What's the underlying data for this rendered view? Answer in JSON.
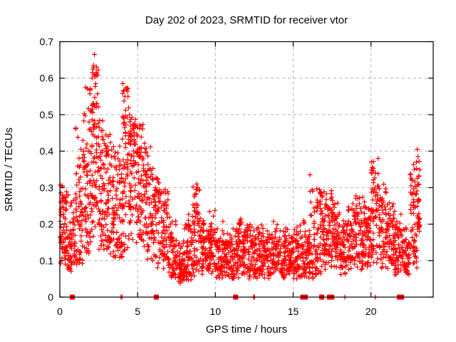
{
  "page": {
    "background": "#ffffff"
  },
  "chart_data": {
    "type": "scatter",
    "title": "Day 202 of 2023, SRMTID for receiver vtor",
    "xlabel": "GPS time / hours",
    "ylabel": "SRMTID / TECUs",
    "xlim": [
      0,
      24
    ],
    "ylim": [
      0,
      0.7
    ],
    "xticks": [
      0,
      5,
      10,
      15,
      20
    ],
    "yticks": [
      0,
      0.1,
      0.2,
      0.3,
      0.4,
      0.5,
      0.6,
      0.7
    ],
    "grid": true,
    "grid_color": "#b0b0b0",
    "marker": "plus",
    "marker_color": "#ff0000",
    "border_color": "#000000",
    "series_note": "dense SRMTID scatter; bins are [x_start, x_end, n_points, y_min, y_q25, y_q75, y_max] read from the plot",
    "bins": [
      [
        0.0,
        0.5,
        70,
        0.08,
        0.14,
        0.25,
        0.31
      ],
      [
        0.5,
        1.0,
        60,
        0.07,
        0.1,
        0.18,
        0.28
      ],
      [
        1.0,
        1.5,
        65,
        0.09,
        0.13,
        0.28,
        0.47
      ],
      [
        1.5,
        2.0,
        75,
        0.12,
        0.18,
        0.42,
        0.6
      ],
      [
        2.0,
        2.5,
        85,
        0.13,
        0.26,
        0.52,
        0.64
      ],
      [
        2.5,
        3.0,
        75,
        0.12,
        0.2,
        0.4,
        0.5
      ],
      [
        3.0,
        3.5,
        70,
        0.1,
        0.16,
        0.32,
        0.45
      ],
      [
        3.5,
        4.0,
        65,
        0.1,
        0.15,
        0.35,
        0.42
      ],
      [
        4.0,
        4.5,
        80,
        0.12,
        0.25,
        0.48,
        0.58
      ],
      [
        4.5,
        5.0,
        75,
        0.13,
        0.25,
        0.44,
        0.5
      ],
      [
        5.0,
        5.5,
        70,
        0.12,
        0.22,
        0.4,
        0.48
      ],
      [
        5.5,
        6.0,
        65,
        0.1,
        0.18,
        0.32,
        0.42
      ],
      [
        6.0,
        6.5,
        60,
        0.08,
        0.15,
        0.28,
        0.33
      ],
      [
        6.5,
        7.0,
        60,
        0.07,
        0.12,
        0.25,
        0.3
      ],
      [
        7.0,
        7.5,
        55,
        0.05,
        0.08,
        0.16,
        0.22
      ],
      [
        7.5,
        8.0,
        55,
        0.035,
        0.06,
        0.12,
        0.16
      ],
      [
        8.0,
        8.5,
        60,
        0.04,
        0.07,
        0.15,
        0.25
      ],
      [
        8.5,
        9.0,
        65,
        0.05,
        0.1,
        0.22,
        0.31
      ],
      [
        9.0,
        9.5,
        60,
        0.06,
        0.1,
        0.18,
        0.24
      ],
      [
        9.5,
        10.0,
        60,
        0.06,
        0.09,
        0.17,
        0.24
      ],
      [
        10.0,
        10.5,
        60,
        0.05,
        0.08,
        0.15,
        0.21
      ],
      [
        10.5,
        11.0,
        55,
        0.05,
        0.08,
        0.14,
        0.18
      ],
      [
        11.0,
        11.5,
        60,
        0.05,
        0.08,
        0.15,
        0.2
      ],
      [
        11.5,
        12.0,
        60,
        0.06,
        0.09,
        0.16,
        0.22
      ],
      [
        12.0,
        12.5,
        55,
        0.05,
        0.08,
        0.15,
        0.2
      ],
      [
        12.5,
        13.0,
        60,
        0.05,
        0.08,
        0.16,
        0.2
      ],
      [
        13.0,
        13.5,
        55,
        0.05,
        0.08,
        0.15,
        0.19
      ],
      [
        13.5,
        14.0,
        60,
        0.06,
        0.09,
        0.16,
        0.21
      ],
      [
        14.0,
        14.5,
        55,
        0.05,
        0.08,
        0.15,
        0.19
      ],
      [
        14.5,
        15.0,
        60,
        0.06,
        0.09,
        0.16,
        0.2
      ],
      [
        15.0,
        15.5,
        60,
        0.05,
        0.08,
        0.16,
        0.2
      ],
      [
        15.5,
        16.0,
        55,
        0.05,
        0.08,
        0.15,
        0.22
      ],
      [
        16.0,
        16.5,
        55,
        0.05,
        0.08,
        0.18,
        0.3
      ],
      [
        16.5,
        17.0,
        65,
        0.06,
        0.12,
        0.24,
        0.3
      ],
      [
        17.0,
        17.5,
        65,
        0.07,
        0.13,
        0.25,
        0.3
      ],
      [
        17.5,
        18.0,
        65,
        0.08,
        0.14,
        0.22,
        0.27
      ],
      [
        18.0,
        18.5,
        60,
        0.06,
        0.1,
        0.18,
        0.23
      ],
      [
        18.5,
        19.0,
        60,
        0.07,
        0.11,
        0.2,
        0.26
      ],
      [
        19.0,
        19.5,
        60,
        0.07,
        0.12,
        0.22,
        0.28
      ],
      [
        19.5,
        20.0,
        60,
        0.08,
        0.12,
        0.21,
        0.27
      ],
      [
        20.0,
        20.5,
        65,
        0.09,
        0.15,
        0.3,
        0.385
      ],
      [
        20.5,
        21.0,
        60,
        0.08,
        0.14,
        0.26,
        0.31
      ],
      [
        21.0,
        21.5,
        60,
        0.07,
        0.11,
        0.2,
        0.27
      ],
      [
        21.5,
        22.0,
        60,
        0.06,
        0.1,
        0.18,
        0.24
      ],
      [
        22.0,
        22.5,
        55,
        0.06,
        0.09,
        0.15,
        0.19
      ],
      [
        22.5,
        23.0,
        65,
        0.08,
        0.14,
        0.28,
        0.37
      ],
      [
        23.0,
        23.15,
        25,
        0.12,
        0.2,
        0.33,
        0.41
      ]
    ],
    "outlier_points": [
      [
        2.22,
        0.665
      ],
      [
        2.1,
        0.615
      ],
      [
        2.13,
        0.625
      ],
      [
        2.17,
        0.635
      ],
      [
        2.07,
        0.6
      ],
      [
        2.25,
        0.605
      ],
      [
        1.95,
        0.57
      ],
      [
        2.3,
        0.585
      ],
      [
        4.05,
        0.585
      ],
      [
        4.1,
        0.565
      ],
      [
        4.18,
        0.55
      ],
      [
        16.08,
        0.335
      ],
      [
        16.1,
        0.29
      ],
      [
        16.13,
        0.26
      ],
      [
        16.11,
        0.225
      ],
      [
        8.8,
        0.31
      ],
      [
        8.83,
        0.295
      ],
      [
        22.98,
        0.405
      ],
      [
        23.02,
        0.385
      ],
      [
        22.92,
        0.37
      ],
      [
        0.15,
        0.305
      ],
      [
        0.55,
        0.28
      ]
    ],
    "zero_plus_points_x": [
      3.93,
      4.0,
      12.45,
      12.52,
      18.32,
      20.28
    ],
    "square_markers_x": [
      0.8,
      6.2,
      11.3,
      15.62,
      15.78,
      16.83,
      17.33,
      17.48,
      21.83,
      21.97
    ]
  }
}
